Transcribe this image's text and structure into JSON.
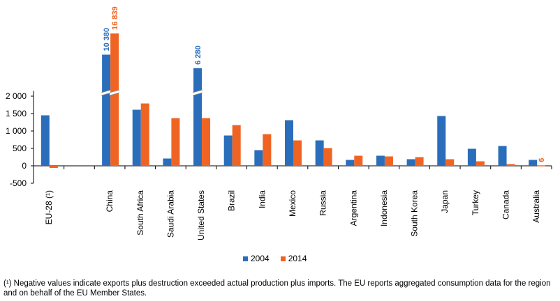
{
  "chart_data": {
    "type": "bar",
    "categories": [
      "EU-28 (¹)",
      "",
      "China",
      "South Africa",
      "Saudi Arabia",
      "United States",
      "Brazil",
      "India",
      "Mexico",
      "Russia",
      "Argentina",
      "Indonesia",
      "South Korea",
      "Japan",
      "Turkey",
      "Canada",
      "Australia"
    ],
    "series": [
      {
        "name": "2004",
        "color": "#2a6ebb",
        "values": [
          1450,
          null,
          10380,
          1610,
          210,
          6280,
          870,
          450,
          1310,
          730,
          170,
          290,
          190,
          1430,
          490,
          570,
          170
        ]
      },
      {
        "name": "2014",
        "color": "#f06423",
        "values": [
          -60,
          null,
          16839,
          1790,
          1370,
          1370,
          1170,
          910,
          730,
          510,
          290,
          270,
          250,
          190,
          130,
          50,
          6
        ]
      }
    ],
    "ylim": [
      -500,
      2000
    ],
    "yticks": [
      "-500",
      "0",
      "500",
      "1 000",
      "1 500",
      "2 000"
    ],
    "ytick_values": [
      -500,
      0,
      500,
      1000,
      1500,
      2000
    ],
    "axis_break": true,
    "data_labels": [
      {
        "series": 0,
        "category": 2,
        "text": "10 380"
      },
      {
        "series": 1,
        "category": 2,
        "text": "16 839"
      },
      {
        "series": 0,
        "category": 5,
        "text": "6 280"
      },
      {
        "series": 1,
        "category": 16,
        "text": "6"
      }
    ],
    "legend_placement": "bottom",
    "grid": false
  },
  "legend": [
    {
      "label": "2004",
      "color": "#2a6ebb"
    },
    {
      "label": "2014",
      "color": "#f06423"
    }
  ],
  "footnote": "(¹) Negative values indicate exports plus destruction exceeded actual production plus imports. The EU reports aggregated consumption data for the region and on behalf of the EU Member States."
}
